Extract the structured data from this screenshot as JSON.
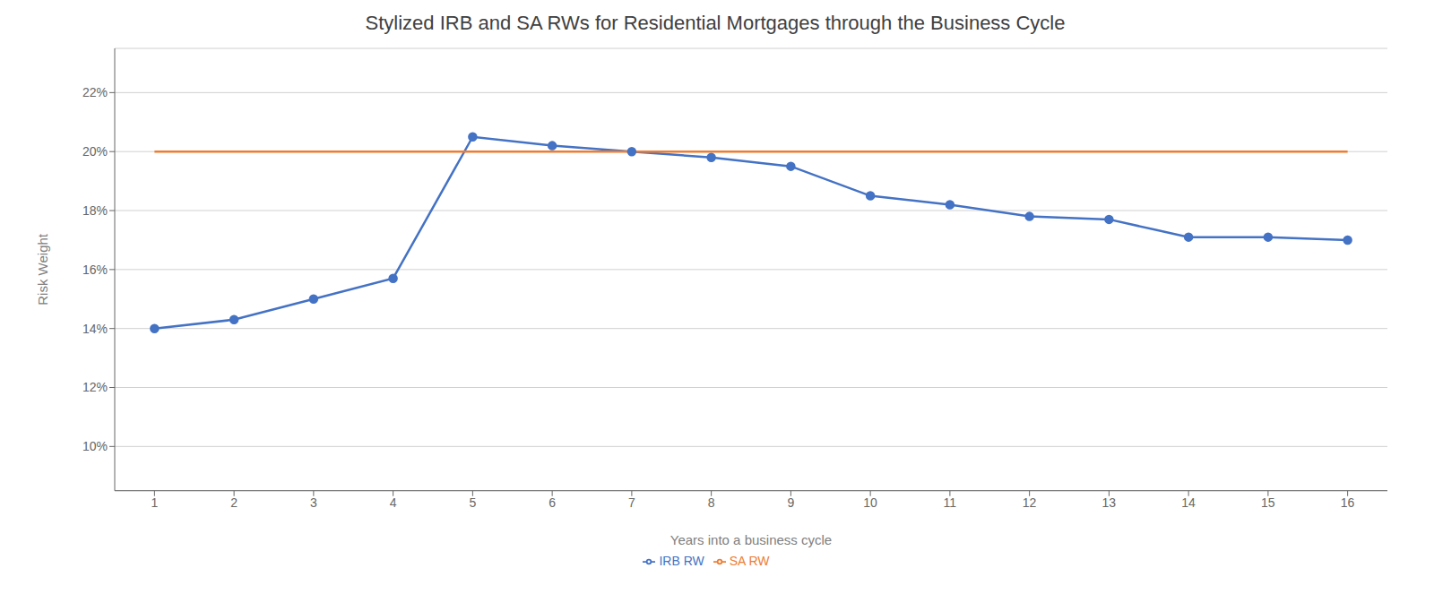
{
  "chart_data": {
    "type": "line",
    "title": "Stylized IRB and SA RWs for Residential Mortgages through the Business Cycle",
    "x_label": "Years into a business cycle",
    "y_label": "Risk Weight",
    "x": [
      1,
      2,
      3,
      4,
      5,
      6,
      7,
      8,
      9,
      10,
      11,
      12,
      13,
      14,
      15,
      16
    ],
    "series": [
      {
        "name": "IRB RW",
        "color": "#4472C4",
        "marker": "circle",
        "values": [
          0.14,
          0.143,
          0.15,
          0.157,
          0.205,
          0.202,
          0.2,
          0.198,
          0.195,
          0.185,
          0.182,
          0.178,
          0.177,
          0.171,
          0.171,
          0.17
        ]
      },
      {
        "name": "SA RW",
        "color": "#ED7D31",
        "marker": "none",
        "values": [
          0.2,
          0.2,
          0.2,
          0.2,
          0.2,
          0.2,
          0.2,
          0.2,
          0.2,
          0.2,
          0.2,
          0.2,
          0.2,
          0.2,
          0.2,
          0.2
        ]
      }
    ],
    "xlim": [
      0.5,
      16.5
    ],
    "xticks": [
      1,
      2,
      3,
      4,
      5,
      6,
      7,
      8,
      9,
      10,
      11,
      12,
      13,
      14,
      15,
      16
    ],
    "ylim": [
      0.085,
      0.235
    ],
    "yticks": [
      {
        "value": 0.1,
        "label": "10%"
      },
      {
        "value": 0.12,
        "label": "12%"
      },
      {
        "value": 0.14,
        "label": "14%"
      },
      {
        "value": 0.16,
        "label": "16%"
      },
      {
        "value": 0.18,
        "label": "18%"
      },
      {
        "value": 0.2,
        "label": "20%"
      },
      {
        "value": 0.22,
        "label": "22%"
      }
    ],
    "grid": "y",
    "legend": "bottom"
  }
}
